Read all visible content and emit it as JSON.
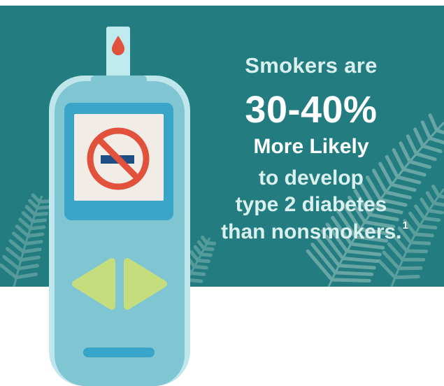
{
  "colors": {
    "background": "#ffffff",
    "banner": "#237d80",
    "fern": "#7fb4b3",
    "meter_body": "#7fc6d2",
    "meter_outline": "#bfe6ec",
    "meter_dark": "#5ab3c4",
    "screen_frame": "#3aa4c9",
    "screen": "#f2ece7",
    "no_sign": "#e2513c",
    "cigarette": "#1d4f86",
    "arrows": "#c6dd7e",
    "strip": "#bfeaf0",
    "blood_drop": "#e2513c"
  },
  "icons": {
    "meter": "glucose-meter-icon",
    "drop": "blood-drop-icon",
    "no_smoking": "no-smoking-icon",
    "left_arrow": "left-arrow-icon",
    "right_arrow": "right-arrow-icon",
    "fern": "fern-leaf-icon"
  },
  "headline": {
    "line1": "Smokers are",
    "line2": "30-40%",
    "line3": "More Likely",
    "line4": "to develop",
    "line5": "type 2 diabetes",
    "line6": "than nonsmokers.",
    "footnote": "1"
  }
}
